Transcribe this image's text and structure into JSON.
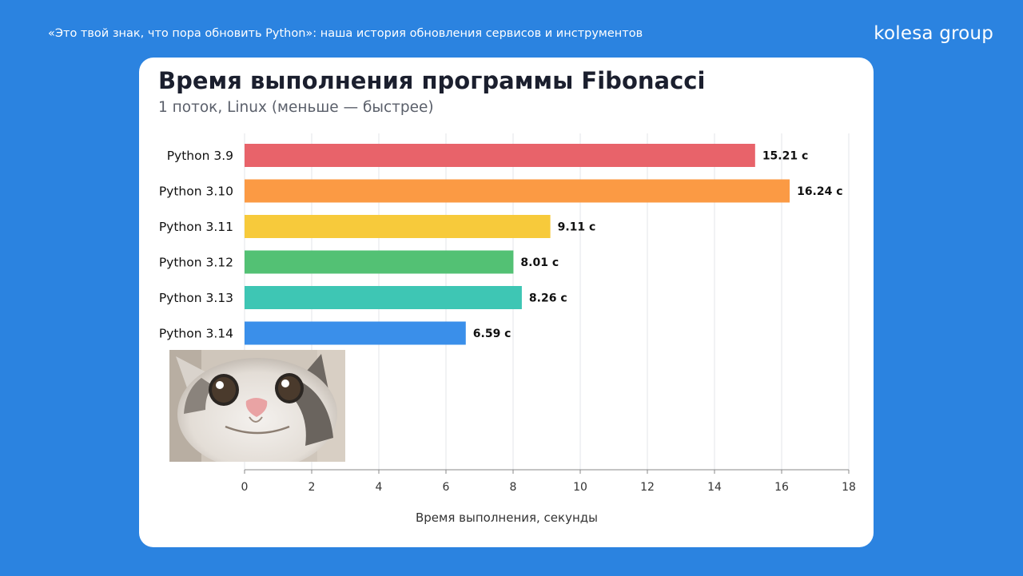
{
  "header": {
    "slide_title": "«Это твой знак, что пора обновить Python»: наша история обновления сервисов и инструментов",
    "brand": "kolesa group"
  },
  "meme": {
    "icon": "smiling-cat-photo"
  },
  "chart_data": {
    "type": "bar",
    "orientation": "horizontal",
    "title": "Время выполнения программы Fibonacci",
    "subtitle": "1 поток, Linux (меньше — быстрее)",
    "xlabel": "Время выполнения, секунды",
    "ylabel": "",
    "xlim": [
      0,
      18
    ],
    "xticks": [
      0,
      2,
      4,
      6,
      8,
      10,
      12,
      14,
      16,
      18
    ],
    "grid": true,
    "categories": [
      "Python 3.9",
      "Python 3.10",
      "Python 3.11",
      "Python 3.12",
      "Python 3.13",
      "Python 3.14"
    ],
    "values": [
      15.21,
      16.24,
      9.11,
      8.01,
      8.26,
      6.59
    ],
    "value_labels": [
      "15.21 с",
      "16.24 с",
      "9.11 с",
      "8.01 с",
      "8.26 с",
      "6.59 с"
    ],
    "colors": [
      "#e8636a",
      "#fb9a44",
      "#f7ca3b",
      "#53c174",
      "#3ec6b4",
      "#3a8fea"
    ]
  }
}
